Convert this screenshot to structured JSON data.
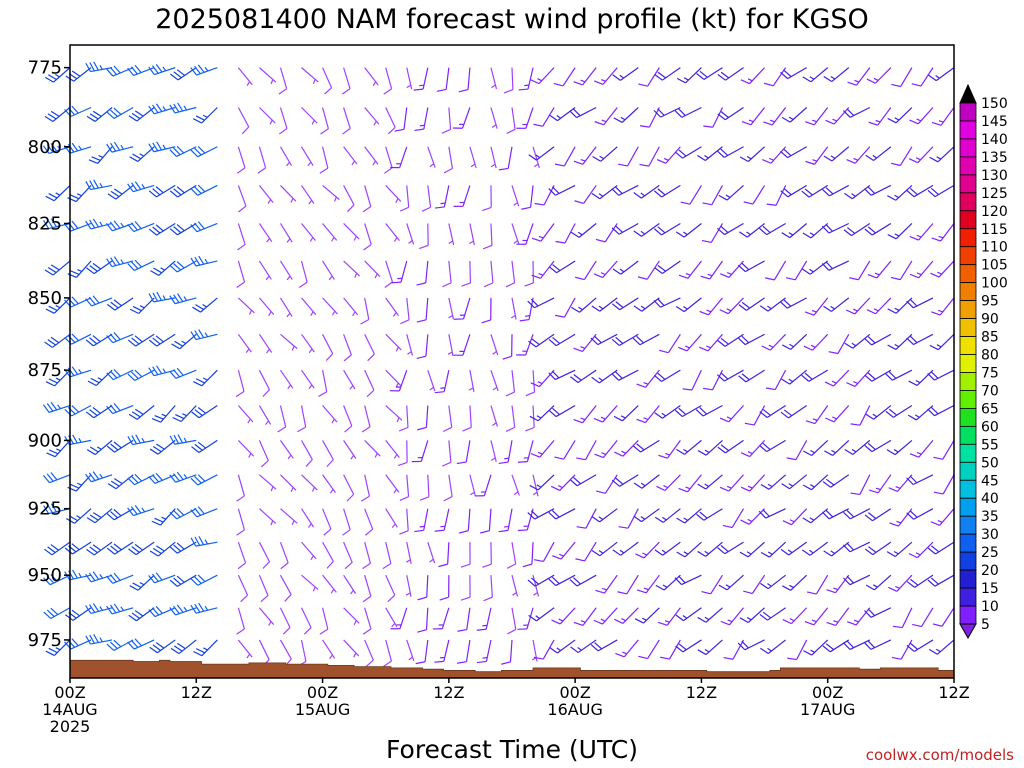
{
  "title": "2025081400 NAM forecast wind profile (kt) for KGSO",
  "credit": "coolwx.com/models",
  "chart_data": {
    "type": "wind-barb-profile",
    "title": "2025081400 NAM forecast wind profile (kt) for KGSO",
    "xlabel": "Forecast Time (UTC)",
    "ylabel": "",
    "units": "kt",
    "ylim": [
      990,
      768
    ],
    "xlim_hours": [
      0,
      84
    ],
    "yticks": [
      775,
      800,
      825,
      850,
      875,
      900,
      925,
      950,
      975
    ],
    "xticks": [
      {
        "hour": 0,
        "lines": [
          "00Z",
          "14AUG",
          "2025"
        ]
      },
      {
        "hour": 12,
        "lines": [
          "12Z"
        ]
      },
      {
        "hour": 24,
        "lines": [
          "00Z",
          "15AUG"
        ]
      },
      {
        "hour": 36,
        "lines": [
          "12Z"
        ]
      },
      {
        "hour": 48,
        "lines": [
          "00Z",
          "16AUG"
        ]
      },
      {
        "hour": 60,
        "lines": [
          "12Z"
        ]
      },
      {
        "hour": 72,
        "lines": [
          "00Z",
          "17AUG"
        ]
      },
      {
        "hour": 84,
        "lines": [
          "12Z"
        ]
      }
    ],
    "colorbar": {
      "levels": [
        5,
        10,
        15,
        20,
        25,
        30,
        35,
        40,
        45,
        50,
        55,
        60,
        65,
        70,
        75,
        80,
        85,
        90,
        95,
        100,
        105,
        110,
        115,
        120,
        125,
        130,
        135,
        140,
        145,
        150
      ],
      "colors": [
        "#a040ff",
        "#8020ff",
        "#4020e0",
        "#2020d0",
        "#1040e0",
        "#1060f0",
        "#1080f0",
        "#00a0f0",
        "#00c0e0",
        "#00d0c0",
        "#00e0a0",
        "#00e060",
        "#20e020",
        "#60f000",
        "#a0f000",
        "#e0f000",
        "#f0e000",
        "#f0c000",
        "#f0a000",
        "#f08000",
        "#f06000",
        "#f04000",
        "#f02000",
        "#e00020",
        "#e00060",
        "#e00090",
        "#e000b0",
        "#e000d0",
        "#e000e0",
        "#c000c0"
      ],
      "max_color": "#000000",
      "min_color": "#8020e0"
    },
    "terrain": {
      "color": "#a0522d",
      "edge_color": "#6b3a1e",
      "surface_pressure_hpa": [
        {
          "hour": 0,
          "p": 983
        },
        {
          "hour": 6,
          "p": 983.5
        },
        {
          "hour": 8.5,
          "p": 983
        },
        {
          "hour": 9.5,
          "p": 983.5
        },
        {
          "hour": 12.5,
          "p": 984.5
        },
        {
          "hour": 17,
          "p": 984
        },
        {
          "hour": 20.5,
          "p": 984.5
        },
        {
          "hour": 24.5,
          "p": 985
        },
        {
          "hour": 27,
          "p": 985.5
        },
        {
          "hour": 30.5,
          "p": 986
        },
        {
          "hour": 33.5,
          "p": 986.5
        },
        {
          "hour": 35.5,
          "p": 987
        },
        {
          "hour": 38.5,
          "p": 987.5
        },
        {
          "hour": 41,
          "p": 987
        },
        {
          "hour": 44,
          "p": 986
        },
        {
          "hour": 48.5,
          "p": 987
        },
        {
          "hour": 60.5,
          "p": 987.5
        },
        {
          "hour": 66.5,
          "p": 987
        },
        {
          "hour": 67.5,
          "p": 986
        },
        {
          "hour": 75,
          "p": 986.5
        },
        {
          "hour": 77,
          "p": 986
        },
        {
          "hour": 82.5,
          "p": 987
        },
        {
          "hour": 84,
          "p": 987
        }
      ]
    },
    "barbs": {
      "pressure_levels": [
        775,
        787.5,
        800,
        812.5,
        825,
        837.5,
        850,
        862.5,
        875,
        887.5,
        900,
        912.5,
        925,
        937.5,
        950,
        962.5,
        975
      ],
      "hour_step": 2,
      "wind_regimes_kt": [
        {
          "hours": [
            0,
            14
          ],
          "direction_deg": 240,
          "speed_range": [
            25,
            35
          ]
        },
        {
          "hours": [
            16,
            30
          ],
          "direction_deg": 150,
          "speed_range": [
            5,
            10
          ]
        },
        {
          "hours": [
            30,
            44
          ],
          "direction_deg": 180,
          "speed_range": [
            5,
            15
          ]
        },
        {
          "hours": [
            44,
            84
          ],
          "direction_deg": 225,
          "speed_range": [
            10,
            20
          ]
        }
      ]
    }
  }
}
